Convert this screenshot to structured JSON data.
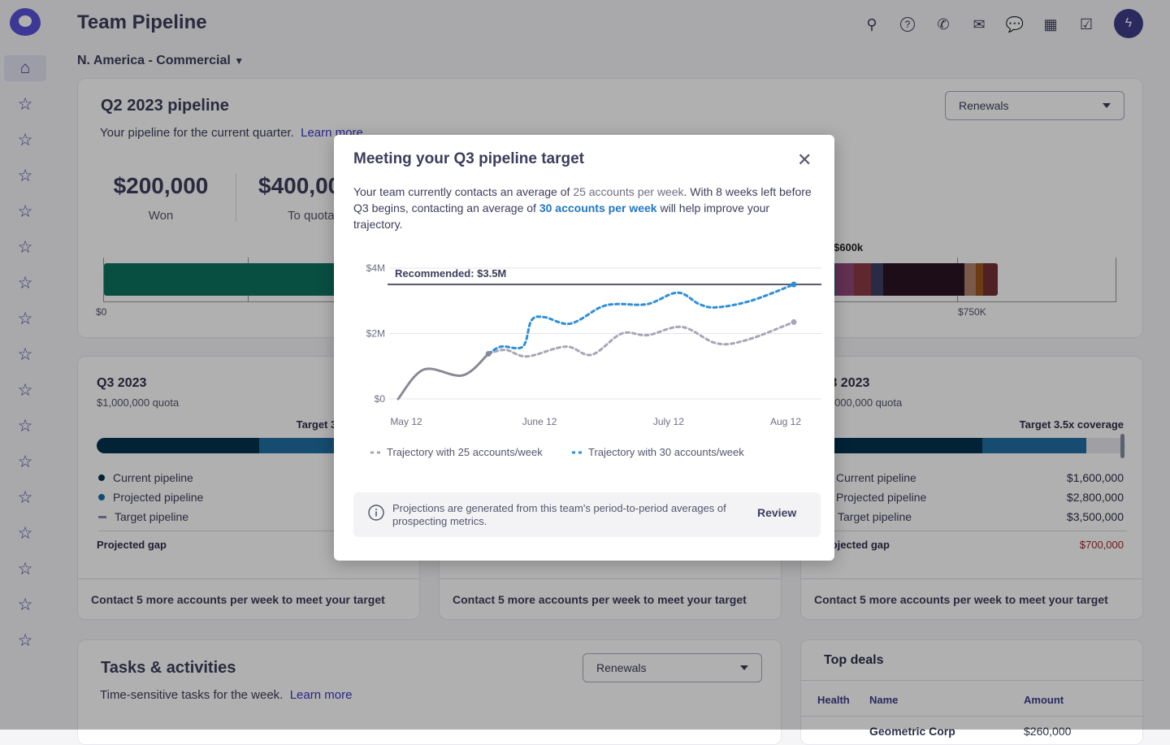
{
  "app": {
    "title": "Team Pipeline",
    "team": "N. America - Commercial"
  },
  "header_icons": [
    "search-icon",
    "help-icon",
    "phone-icon",
    "mail-icon",
    "chat-icon",
    "calendar-icon",
    "tasks-icon"
  ],
  "avatar_icon": "lightning-icon",
  "sidebar": {
    "items": [
      "home-icon",
      "star-icon",
      "star-icon",
      "star-icon",
      "star-icon",
      "star-icon",
      "star-icon",
      "star-icon",
      "star-icon",
      "star-icon",
      "star-icon",
      "star-icon",
      "star-icon",
      "star-icon",
      "star-icon",
      "star-icon",
      "star-icon"
    ]
  },
  "q2": {
    "title": "Q2 2023 pipeline",
    "subtitle": "Your pipeline for the current quarter.",
    "learn_more": "Learn more",
    "filter": "Renewals",
    "won_value": "$200,000",
    "won_label": "Won",
    "quota_value": "$400,000",
    "quota_label": "To quota",
    "bar_label": "$600k",
    "axis": [
      "$0",
      "$750K"
    ]
  },
  "q3_cards": [
    {
      "title": "Q3 2023",
      "quota": "$1,000,000 quota",
      "target": "Target 3.5x coverage",
      "current": "Current pipeline",
      "projected": "Projected pipeline",
      "target_pipeline": "Target pipeline",
      "gap": "Projected gap",
      "footer": "Contact 5 more accounts per week to meet your target"
    },
    {
      "footer": "Contact 5 more accounts per week to meet your target"
    },
    {
      "title": "Q3 2023",
      "quota": "$1,000,000 quota",
      "target": "Target 3.5x coverage",
      "current": "Current pipeline",
      "current_value": "$1,600,000",
      "projected": "Projected pipeline",
      "projected_value": "$2,800,000",
      "target_pipeline": "Target pipeline",
      "target_value": "$3,500,000",
      "gap": "Projected gap",
      "gap_value": "$700,000",
      "footer": "Contact 5 more accounts per week to meet your target"
    }
  ],
  "tasks": {
    "title": "Tasks & activities",
    "subtitle": "Time-sensitive tasks for the week.",
    "learn_more": "Learn more",
    "filter": "Renewals"
  },
  "top_deals": {
    "title": "Top deals",
    "columns": [
      "Health",
      "Name",
      "Amount"
    ],
    "rows": [
      {
        "name": "Geometric Corp",
        "amount": "$260,000"
      }
    ]
  },
  "colors": {
    "accent": "#3b35c9",
    "current": "#03324f",
    "projected": "#1f6ea3",
    "won": "#0d7360",
    "gap": "#a0282a",
    "series30": "#2f8fd6",
    "series25": "#a6a6b8"
  },
  "modal": {
    "title": "Meeting your Q3 pipeline target",
    "text_a": "Your team currently contacts an average of ",
    "text_b": "25 accounts per week",
    "text_c": ". With 8 weeks left before Q3 begins, contacting an average of ",
    "text_d": "30 accounts per week",
    "text_e": " will help improve your trajectory.",
    "info": "Projections are generated from this team's period-to-period averages of prospecting metrics.",
    "review": "Review"
  },
  "chart_data": {
    "type": "line",
    "yticks": [
      "$0",
      "$2M",
      "$4M"
    ],
    "ylim": [
      0,
      4000000
    ],
    "xticks": [
      "May 12",
      "June 12",
      "July 12",
      "Aug 12"
    ],
    "xlim": [
      "05-12",
      "08-12"
    ],
    "grid": true,
    "legend": "bottom",
    "reference": {
      "label": "Recommended: $3.5M",
      "value": 3500000
    },
    "actual": {
      "x": [
        "05-12",
        "05-18",
        "05-27",
        "06-02"
      ],
      "y": [
        0,
        900000,
        720000,
        1380000
      ]
    },
    "series": [
      {
        "name": "Trajectory with 25 accounts/week",
        "x": [
          "06-02",
          "06-06",
          "06-11",
          "06-20",
          "06-26",
          "07-03",
          "07-09",
          "07-17",
          "07-25",
          "08-01",
          "08-12"
        ],
        "y": [
          1380000,
          1500000,
          1300000,
          1600000,
          1350000,
          2000000,
          1950000,
          2200000,
          1700000,
          1800000,
          2350000
        ]
      },
      {
        "name": "Trajectory with 30 accounts/week",
        "x": [
          "06-02",
          "06-05",
          "06-10",
          "06-12",
          "06-15",
          "06-21",
          "06-28",
          "07-02",
          "07-09",
          "07-16",
          "07-21",
          "07-25",
          "08-02",
          "08-12"
        ],
        "y": [
          1380000,
          1600000,
          1600000,
          2400000,
          2500000,
          2300000,
          2800000,
          2900000,
          2900000,
          3250000,
          2900000,
          2800000,
          3000000,
          3500000
        ]
      }
    ]
  }
}
